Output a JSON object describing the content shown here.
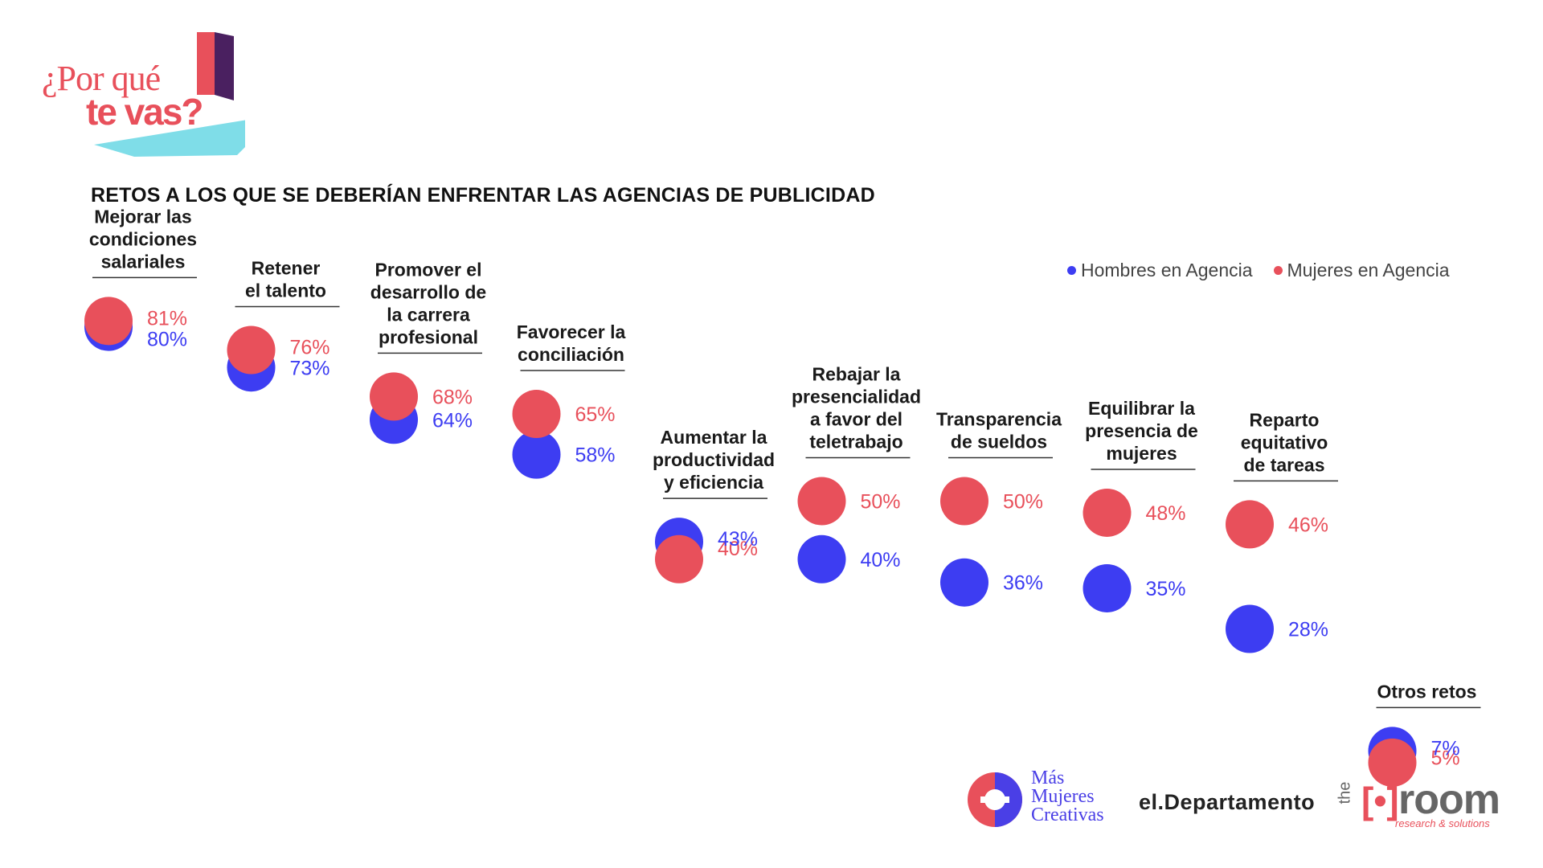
{
  "brand": {
    "logo_line1": "¿Por qué",
    "logo_line2": "te vas?",
    "logo_colors": {
      "coral": "#e8505b",
      "plum": "#4a2060",
      "cyan": "#7fdde8"
    }
  },
  "colors": {
    "hombres": "#3d3df2",
    "mujeres": "#e8505b"
  },
  "footer": {
    "mmc_name": "Más Mujeres Creativas",
    "mmc_lines": [
      "Más",
      "Mujeres",
      "Creativas"
    ],
    "el_departamento": "el.Departamento",
    "room_the": "the",
    "room_bracket": "[•]",
    "room_word": "room",
    "room_sub": "research & solutions"
  },
  "chart_data": {
    "type": "scatter",
    "title": "RETOS A LOS QUE SE DEBERÍAN ENFRENTAR LAS AGENCIAS DE PUBLICIDAD",
    "legend": {
      "placement": "top-right"
    },
    "series": [
      {
        "name": "Hombres en Agencia",
        "color": "#3d3df2",
        "values": [
          80,
          73,
          64,
          58,
          43,
          40,
          36,
          35,
          28,
          7
        ]
      },
      {
        "name": "Mujeres en Agencia",
        "color": "#e8505b",
        "values": [
          81,
          76,
          68,
          65,
          40,
          50,
          50,
          48,
          46,
          5
        ]
      }
    ],
    "categories": [
      "Mejorar las condiciones salariales",
      "Retener el talento",
      "Promover el desarrollo de la carrera profesional",
      "Favorecer la conciliación",
      "Aumentar la productividad y eficiencia",
      "Rebajar la presencialidad a favor del teletrabajo",
      "Transparencia de sueldos",
      "Equilibrar la presencia de mujeres",
      "Reparto equitativo de tareas",
      "Otros retos"
    ],
    "category_lines": [
      [
        "Mejorar las",
        "condiciones",
        "salariales"
      ],
      [
        "Retener",
        "el talento"
      ],
      [
        "Promover el",
        "desarrollo de",
        "la carrera",
        "profesional"
      ],
      [
        "Favorecer la",
        "conciliación"
      ],
      [
        "Aumentar la",
        "productividad",
        "y eficiencia"
      ],
      [
        "Rebajar la",
        "presencialidad",
        "a favor del",
        "teletrabajo"
      ],
      [
        "Transparencia",
        "de sueldos"
      ],
      [
        "Equilibrar la",
        "presencia de",
        "mujeres"
      ],
      [
        "Reparto",
        "equitativo",
        "de tareas"
      ],
      [
        "Otros retos"
      ]
    ],
    "value_labels": {
      "hombres": [
        "80%",
        "73%",
        "64%",
        "58%",
        "43%",
        "40%",
        "36%",
        "35%",
        "28%",
        "7%"
      ],
      "mujeres": [
        "81%",
        "76%",
        "68%",
        "65%",
        "40%",
        "50%",
        "50%",
        "48%",
        "46%",
        "5%"
      ]
    },
    "xlabel": "",
    "ylabel": "",
    "ylim": [
      0,
      100
    ],
    "grid": false
  }
}
